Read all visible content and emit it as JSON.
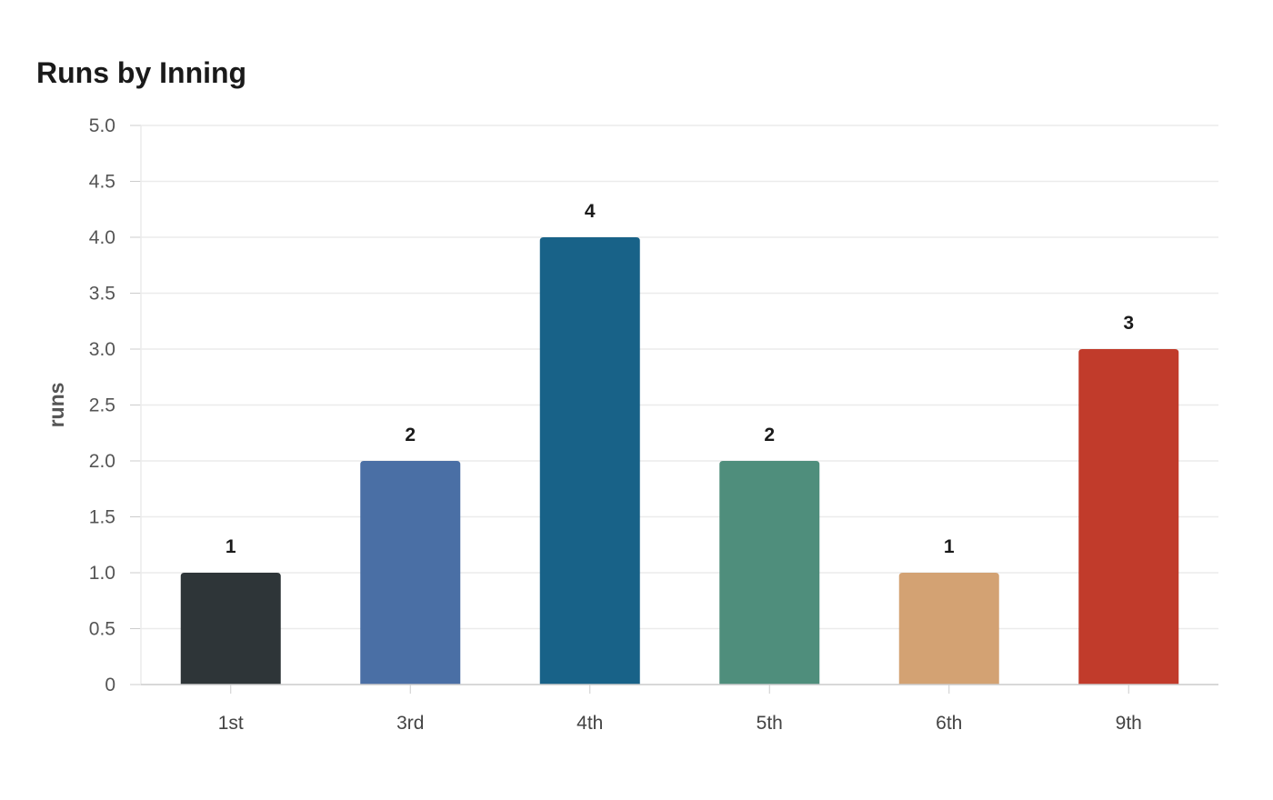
{
  "chart_data": {
    "type": "bar",
    "title": "Runs by Inning",
    "xlabel": "",
    "ylabel": "runs",
    "categories": [
      "1st",
      "3rd",
      "4th",
      "5th",
      "6th",
      "9th"
    ],
    "values": [
      1,
      2,
      4,
      2,
      1,
      3
    ],
    "value_labels": [
      "1",
      "2",
      "4",
      "2",
      "1",
      "3"
    ],
    "colors": [
      "#2e3538",
      "#4a6fa5",
      "#186288",
      "#4f8e7c",
      "#d3a273",
      "#c13b2b"
    ],
    "ylim": [
      0,
      5
    ],
    "y_ticks": [
      0,
      0.5,
      1,
      1.5,
      2,
      2.5,
      3,
      3.5,
      4,
      4.5,
      5
    ],
    "y_tick_labels": [
      "0",
      "0.5",
      "1.0",
      "1.5",
      "2.0",
      "2.5",
      "3.0",
      "3.5",
      "4.0",
      "4.5",
      "5.0"
    ],
    "grid": true,
    "legend": "none",
    "grid_color": "#ebebeb",
    "axis_color": "#cccccc"
  }
}
